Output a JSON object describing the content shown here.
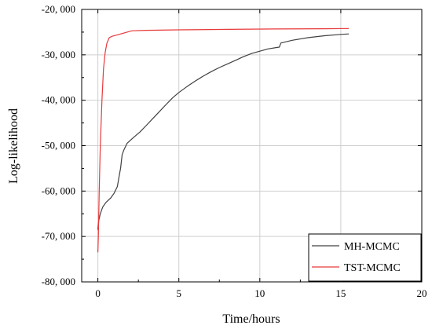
{
  "chart_data": {
    "type": "line",
    "title": "",
    "xlabel": "Time/hours",
    "ylabel": "Log-likelihood",
    "xlim": [
      -1,
      20
    ],
    "ylim": [
      -80000,
      -20000
    ],
    "xticks": [
      0,
      5,
      10,
      15,
      20
    ],
    "xtick_labels": [
      "0",
      "5",
      "10",
      "15",
      "20"
    ],
    "yticks": [
      -80000,
      -70000,
      -60000,
      -50000,
      -40000,
      -30000,
      -20000
    ],
    "ytick_labels": [
      "-80, 000",
      "-70, 000",
      "-60, 000",
      "-50, 000",
      "-40, 000",
      "-30, 000",
      "-20, 000"
    ],
    "grid": true,
    "legend_position": "bottom-right",
    "series": [
      {
        "name": "MH-MCMC",
        "color": "#404040",
        "x": [
          0,
          0.05,
          0.15,
          0.3,
          0.5,
          0.8,
          1.0,
          1.2,
          1.3,
          1.4,
          1.5,
          1.6,
          1.8,
          2.2,
          2.6,
          3.0,
          3.4,
          3.8,
          4.2,
          4.6,
          5.0,
          5.5,
          6.0,
          6.5,
          7.0,
          7.5,
          8.0,
          8.5,
          9.0,
          9.5,
          10.0,
          10.5,
          11.0,
          11.2,
          11.3,
          12.0,
          13.0,
          14.0,
          15.0,
          15.5
        ],
        "y": [
          -68500,
          -66500,
          -65000,
          -63500,
          -62500,
          -61500,
          -60500,
          -59000,
          -57000,
          -55000,
          -52000,
          -51000,
          -49500,
          -48200,
          -47000,
          -45500,
          -44000,
          -42500,
          -41000,
          -39500,
          -38300,
          -37000,
          -35800,
          -34700,
          -33700,
          -32800,
          -32000,
          -31200,
          -30400,
          -29700,
          -29200,
          -28700,
          -28400,
          -28300,
          -27400,
          -26800,
          -26200,
          -25800,
          -25500,
          -25400
        ]
      },
      {
        "name": "TST-MCMC",
        "color": "#e8393a",
        "x": [
          0,
          0.03,
          0.08,
          0.15,
          0.25,
          0.35,
          0.45,
          0.55,
          0.7,
          0.9,
          1.2,
          1.5,
          1.8,
          2.1,
          3.0,
          5.0,
          8.0,
          11.0,
          14.0,
          15.5
        ],
        "y": [
          -73500,
          -70000,
          -60000,
          -50000,
          -40000,
          -33000,
          -29500,
          -27500,
          -26200,
          -25900,
          -25600,
          -25300,
          -25000,
          -24700,
          -24600,
          -24500,
          -24400,
          -24300,
          -24250,
          -24200
        ]
      }
    ]
  }
}
